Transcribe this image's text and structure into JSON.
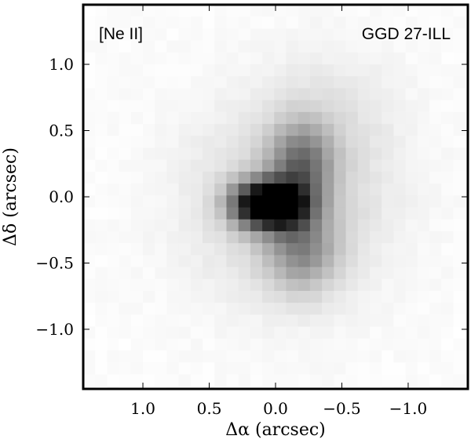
{
  "chart_data": {
    "type": "heatmap",
    "colormap": "gray_r",
    "title": "",
    "line_label": "[Ne II]",
    "object_label": "GGD 27-ILL",
    "xlabel": "Δα (arcsec)",
    "ylabel": "Δδ (arcsec)",
    "xlim": [
      1.45,
      -1.45
    ],
    "ylim": [
      -1.45,
      1.45
    ],
    "x_ticks": [
      1.0,
      0.5,
      0.0,
      -0.5,
      -1.0
    ],
    "x_tick_labels": [
      "1.0",
      "0.5",
      "0.0",
      "−0.5",
      "−1.0"
    ],
    "y_ticks": [
      1.0,
      0.5,
      0.0,
      -0.5,
      -1.0
    ],
    "y_tick_labels": [
      "1.0",
      "0.5",
      "0.0",
      "−0.5",
      "−1.0"
    ],
    "grid": false,
    "pixel_size_arcsec": 0.09,
    "components": [
      {
        "ra": 0.02,
        "dec": -0.02,
        "sigma_ra": 0.15,
        "sigma_dec": 0.12,
        "amp": 0.95
      },
      {
        "ra": 0.22,
        "dec": -0.01,
        "sigma_ra": 0.14,
        "sigma_dec": 0.12,
        "amp": 0.6
      },
      {
        "ra": -0.15,
        "dec": 0.28,
        "sigma_ra": 0.16,
        "sigma_dec": 0.22,
        "amp": 0.45
      },
      {
        "ra": -0.15,
        "dec": -0.35,
        "sigma_ra": 0.18,
        "sigma_dec": 0.22,
        "amp": 0.35
      },
      {
        "ra": -0.05,
        "dec": 0.0,
        "sigma_ra": 0.5,
        "sigma_dec": 0.5,
        "amp": 0.18
      },
      {
        "ra": -0.4,
        "dec": 0.7,
        "sigma_ra": 0.35,
        "sigma_dec": 0.35,
        "amp": 0.06
      }
    ]
  }
}
